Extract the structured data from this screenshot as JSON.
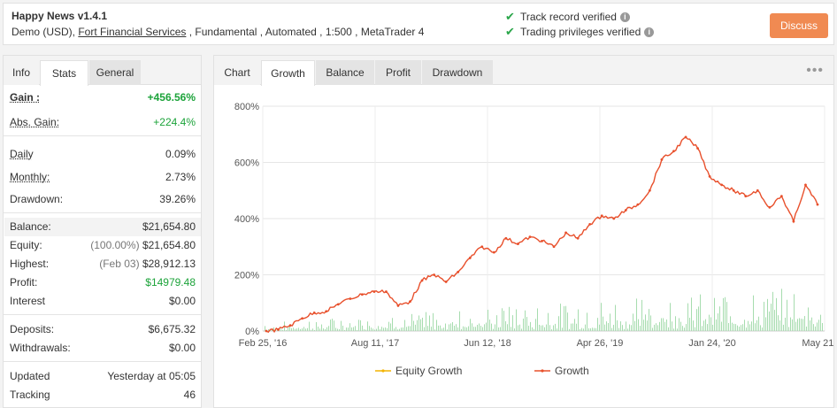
{
  "header": {
    "title": "Happy News v1.4.1",
    "sub_pre": "Demo (USD), ",
    "broker_link": "Fort Financial Services",
    "sub_post": " , Fundamental , Automated , 1:500 , MetaTrader 4",
    "verified_1": "Track record verified",
    "verified_2": "Trading privileges verified",
    "discuss_label": "Discuss"
  },
  "left_tabs": {
    "info": "Info",
    "stats": "Stats",
    "general": "General"
  },
  "stats": {
    "gain_label": "Gain :",
    "gain_value": "+456.56%",
    "abs_gain_label": "Abs. Gain:",
    "abs_gain_value": "+224.4%",
    "daily_label": "Daily",
    "daily_value": "0.09%",
    "monthly_label": "Monthly:",
    "monthly_value": "2.73%",
    "drawdown_label": "Drawdown:",
    "drawdown_value": "39.26%",
    "balance_label": "Balance:",
    "balance_value": "$21,654.80",
    "equity_label": "Equity:",
    "equity_pct": "(100.00%)",
    "equity_value": "$21,654.80",
    "highest_label": "Highest:",
    "highest_date": "(Feb 03)",
    "highest_value": "$28,912.13",
    "profit_label": "Profit:",
    "profit_value": "$14979.48",
    "interest_label": "Interest",
    "interest_value": "$0.00",
    "deposits_label": "Deposits:",
    "deposits_value": "$6,675.32",
    "withdrawals_label": "Withdrawals:",
    "withdrawals_value": "$0.00",
    "updated_label": "Updated",
    "updated_value": "Yesterday at 05:05",
    "tracking_label": "Tracking",
    "tracking_value": "46"
  },
  "chart_tabs": {
    "chart": "Chart",
    "growth": "Growth",
    "balance": "Balance",
    "profit": "Profit",
    "drawdown": "Drawdown",
    "menu": "•••"
  },
  "colors": {
    "growth_line": "#e8502c",
    "equity_line": "#f4b400",
    "volume_bars": "#a6dcae",
    "discuss": "#f08a52",
    "positive": "#1ca33a"
  },
  "chart_data": {
    "type": "line",
    "y_ticks": [
      "0%",
      "200%",
      "400%",
      "600%",
      "800%"
    ],
    "ylim": [
      0,
      800
    ],
    "x_ticks": [
      "Feb 25, '16",
      "Aug 11, '17",
      "Jun 12, '18",
      "Apr 26, '19",
      "Jan 24, '20",
      "May 21, ..."
    ],
    "grid": true,
    "legend_position": "bottom",
    "series": [
      {
        "name": "Equity Growth",
        "values": []
      },
      {
        "name": "Growth",
        "values": [
          0,
          5,
          20,
          45,
          65,
          70,
          95,
          115,
          130,
          140,
          140,
          90,
          105,
          180,
          200,
          175,
          210,
          260,
          300,
          280,
          330,
          310,
          335,
          320,
          300,
          350,
          330,
          380,
          410,
          400,
          430,
          450,
          500,
          610,
          640,
          690,
          650,
          550,
          520,
          500,
          480,
          500,
          440,
          480,
          390,
          520,
          450
        ]
      }
    ]
  }
}
